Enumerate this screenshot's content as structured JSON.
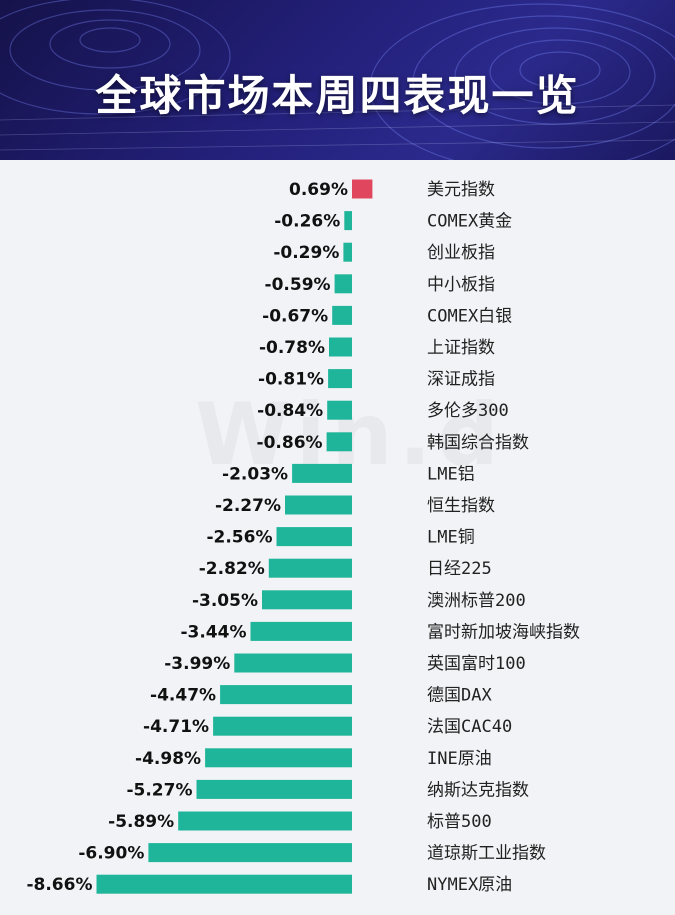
{
  "header": {
    "title": "全球市场本周四表现一览",
    "background_colors": [
      "#15124a",
      "#23207a",
      "#2b2a8c"
    ]
  },
  "watermark": {
    "text": "Win.d"
  },
  "chart_data": {
    "type": "bar",
    "orientation": "horizontal",
    "title": "全球市场本周四表现一览",
    "xlabel": "",
    "ylabel": "",
    "unit": "%",
    "grid": false,
    "legend": "none",
    "colors": {
      "positive": "#e0475f",
      "negative": "#1fb59a"
    },
    "categories": [
      "美元指数",
      "COMEX黄金",
      "创业板指",
      "中小板指",
      "COMEX白银",
      "上证指数",
      "深证成指",
      "多伦多300",
      "韩国综合指数",
      "LME铝",
      "恒生指数",
      "LME铜",
      "日经225",
      "澳洲标普200",
      "富时新加坡海峡指数",
      "英国富时100",
      "德国DAX",
      "法国CAC40",
      "INE原油",
      "纳斯达克指数",
      "标普500",
      "道琼斯工业指数",
      "NYMEX原油"
    ],
    "values": [
      0.69,
      -0.26,
      -0.29,
      -0.59,
      -0.67,
      -0.78,
      -0.81,
      -0.84,
      -0.86,
      -2.03,
      -2.27,
      -2.56,
      -2.82,
      -3.05,
      -3.44,
      -3.99,
      -4.47,
      -4.71,
      -4.98,
      -5.27,
      -5.89,
      -6.9,
      -8.66
    ],
    "data_labels": [
      "0.69%",
      "-0.26%",
      "-0.29%",
      "-0.59%",
      "-0.67%",
      "-0.78%",
      "-0.81%",
      "-0.84%",
      "-0.86%",
      "-2.03%",
      "-2.27%",
      "-2.56%",
      "-2.82%",
      "-3.05%",
      "-3.44%",
      "-3.99%",
      "-4.47%",
      "-4.71%",
      "-4.98%",
      "-5.27%",
      "-5.89%",
      "-6.90%",
      "-8.66%"
    ]
  }
}
